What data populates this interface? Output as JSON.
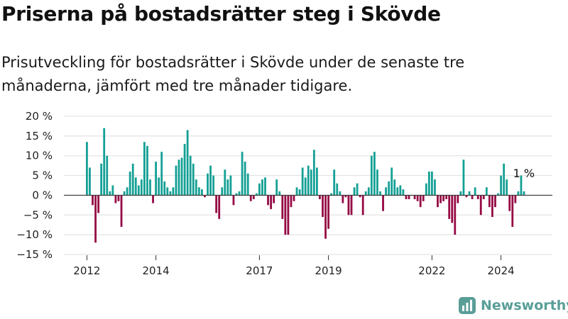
{
  "header": {
    "title": "Priserna på bostadsrätter steg i Skövde",
    "subtitle": "Prisutveckling för bostadsrätter i Skövde under de senaste tre månaderna, jämfört med tre månader tidigare."
  },
  "brand": {
    "name": "Newsworthy"
  },
  "colors": {
    "positive": "#14a095",
    "negative": "#950a44",
    "grid": "#dddddd",
    "zero": "#333333",
    "brand": "#5a9e98"
  },
  "chart_data": {
    "type": "bar",
    "title": "Priserna på bostadsrätter steg i Skövde",
    "subtitle": "Prisutveckling för bostadsrätter i Skövde under de senaste tre månaderna, jämfört med tre månader tidigare.",
    "unit": "%",
    "start": "2012-01",
    "frequency": "monthly",
    "ylim": [
      -15,
      20
    ],
    "yticks": [
      {
        "value": 20,
        "label": "20 %"
      },
      {
        "value": 15,
        "label": "15 %"
      },
      {
        "value": 10,
        "label": "10 %"
      },
      {
        "value": 5,
        "label": "5 %"
      },
      {
        "value": 0,
        "label": "0 %"
      },
      {
        "value": -5,
        "label": "−5 %"
      },
      {
        "value": -10,
        "label": "−10 %"
      },
      {
        "value": -15,
        "label": "−15 %"
      }
    ],
    "xticks": [
      {
        "year": 2012,
        "label": "2012"
      },
      {
        "year": 2014,
        "label": "2014"
      },
      {
        "year": 2017,
        "label": "2017"
      },
      {
        "year": 2019,
        "label": "2019"
      },
      {
        "year": 2022,
        "label": "2022"
      },
      {
        "year": 2024,
        "label": "2024"
      }
    ],
    "grid": true,
    "last_value_label": "1 %",
    "values": [
      13.5,
      7,
      -2.5,
      -12,
      -4.5,
      8,
      17,
      10,
      1,
      2.5,
      -2,
      -1.5,
      -8,
      1,
      2,
      6,
      8,
      4.5,
      2.5,
      4,
      13.5,
      12.5,
      4,
      -2,
      8.5,
      4.5,
      11,
      3.5,
      2,
      1,
      2,
      7.5,
      9,
      9.5,
      13,
      16.5,
      10,
      8,
      4,
      2,
      1.5,
      -0.5,
      5.5,
      7.5,
      5,
      -4.5,
      -6,
      2,
      6.5,
      4,
      5,
      -2.5,
      0.5,
      1,
      11,
      8.5,
      5.5,
      -1.5,
      -1,
      0.5,
      3,
      4,
      4.5,
      -2.5,
      -3.5,
      -2,
      4,
      1,
      -6,
      -10,
      -10,
      -3,
      -1.5,
      2,
      1.5,
      7,
      4.5,
      7.5,
      6.5,
      11.5,
      7,
      -1,
      -5.5,
      -11,
      -8.5,
      0.5,
      6.5,
      3,
      1,
      -2,
      -0.5,
      -5,
      -5,
      2,
      3,
      -0.5,
      -5,
      1,
      2,
      10,
      11,
      6.5,
      1,
      -4,
      2,
      3.5,
      7,
      4,
      2,
      2.5,
      1.5,
      -1,
      -1,
      0,
      -1,
      -1.5,
      -3,
      -1.5,
      3,
      6,
      6,
      4,
      -3,
      -2,
      -1.5,
      -1,
      -6,
      -7,
      -10,
      -2,
      1,
      9,
      -0.5,
      1,
      -1,
      2,
      -1,
      -5,
      -1,
      2,
      -3,
      -5.5,
      -3,
      0.5,
      5,
      8,
      4,
      -4,
      -8,
      -2,
      1,
      5,
      1
    ]
  }
}
